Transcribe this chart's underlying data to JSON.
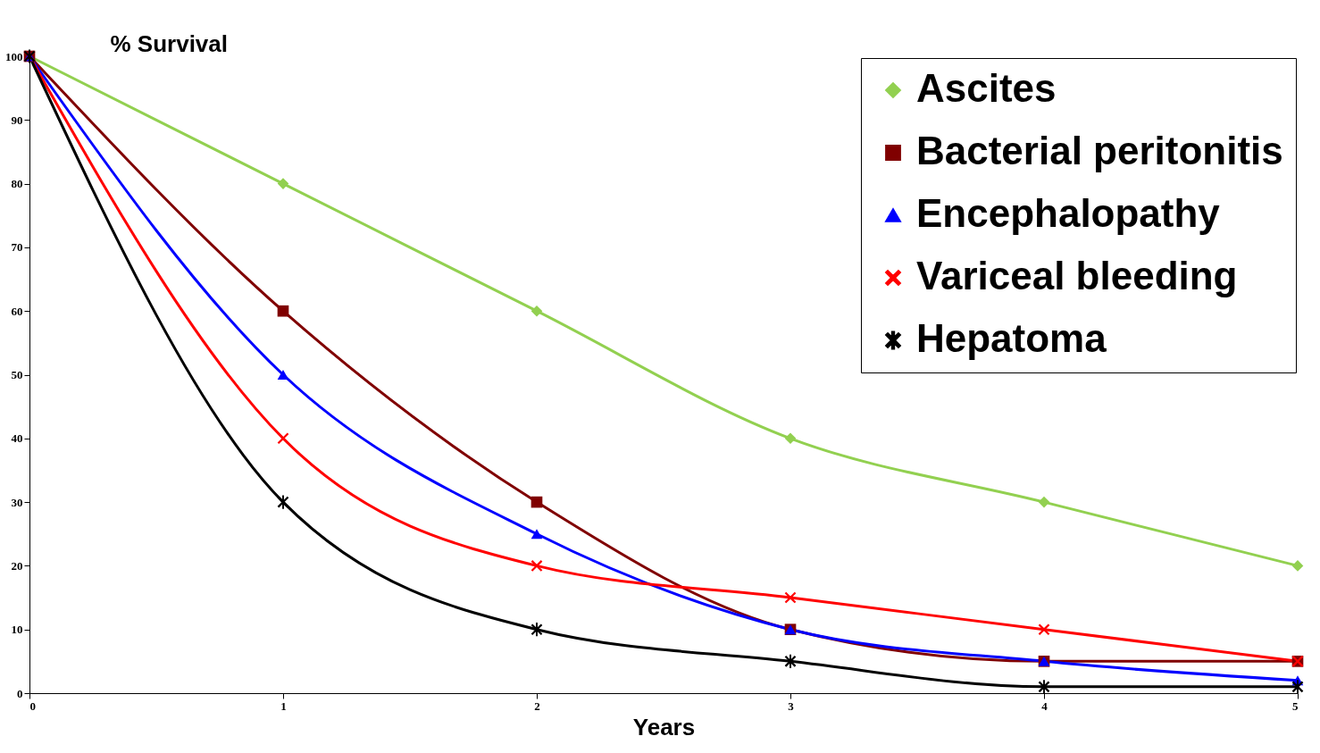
{
  "chart_data": {
    "type": "line",
    "ylabel": "% Survival",
    "xlabel": "Years",
    "x": [
      0,
      1,
      2,
      3,
      4,
      5
    ],
    "series": [
      {
        "name": "Ascites",
        "color": "#92d050",
        "marker": "diamond",
        "values": [
          100,
          80,
          60,
          40,
          30,
          20
        ]
      },
      {
        "name": "Bacterial peritonitis",
        "color": "#800000",
        "marker": "square",
        "values": [
          100,
          60,
          30,
          10,
          5,
          5
        ]
      },
      {
        "name": "Encephalopathy",
        "color": "#0000ff",
        "marker": "triangle",
        "values": [
          100,
          50,
          25,
          10,
          5,
          2
        ]
      },
      {
        "name": "Variceal bleeding",
        "color": "#ff0000",
        "marker": "cross",
        "values": [
          100,
          40,
          20,
          15,
          10,
          5
        ]
      },
      {
        "name": "Hepatoma",
        "color": "#000000",
        "marker": "star",
        "values": [
          100,
          30,
          10,
          5,
          1,
          1
        ]
      }
    ],
    "xlim": [
      0,
      5
    ],
    "xticks": [
      0,
      1,
      2,
      3,
      4,
      5
    ],
    "ylim": [
      0,
      100
    ],
    "yticks": [
      0,
      10,
      20,
      30,
      40,
      50,
      60,
      70,
      80,
      90,
      100
    ],
    "grid": false,
    "legend": "top right"
  }
}
